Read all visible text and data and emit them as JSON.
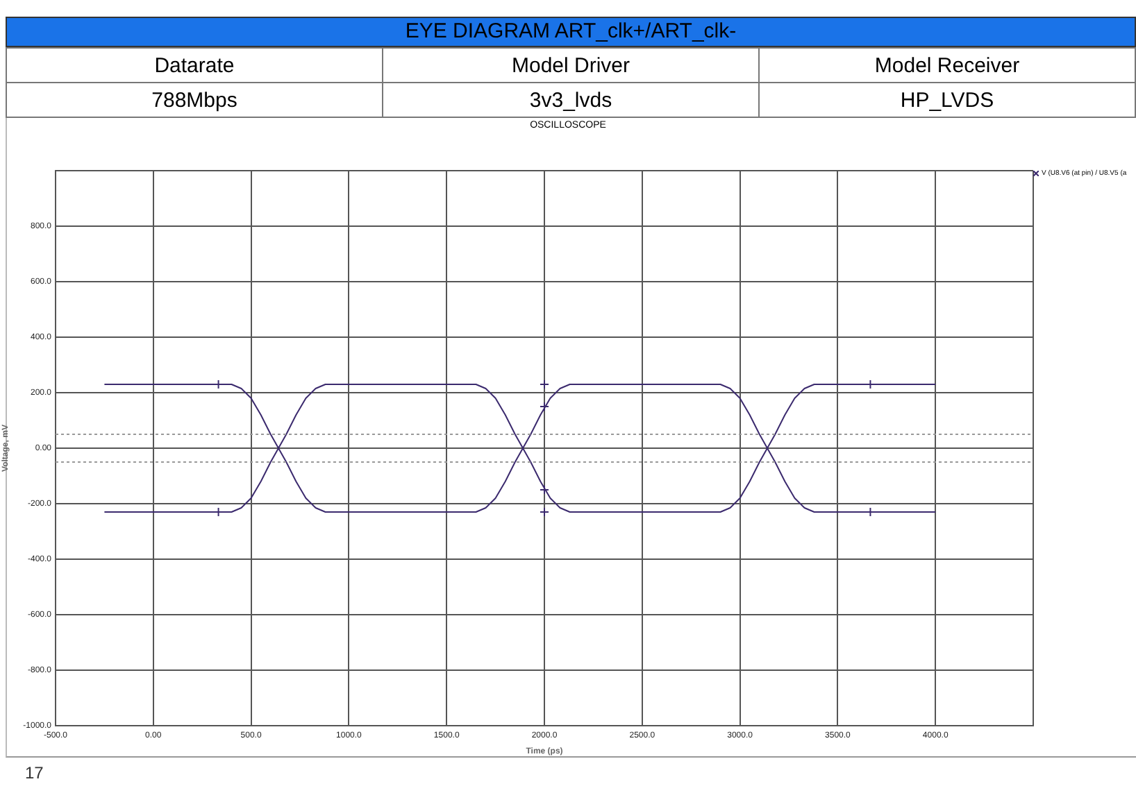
{
  "chart_data": {
    "type": "line",
    "title": "EYE DIAGRAM ART_clk+/ART_clk-",
    "subtitle": "OSCILLOSCOPE",
    "xlabel": "Time (ps)",
    "ylabel": "Voltage, mV",
    "annotations": [
      "Datarate",
      "Model Driver",
      "Model Receiver",
      "788Mbps",
      "3v3_lvds",
      "HP_LVDS",
      "17"
    ],
    "xlim": [
      -500,
      4500
    ],
    "xticks": [
      {
        "value": -500,
        "label": "-500.0"
      },
      {
        "value": 0,
        "label": "0.00"
      },
      {
        "value": 500,
        "label": "500.0"
      },
      {
        "value": 1000,
        "label": "1000.0"
      },
      {
        "value": 1500,
        "label": "1500.0"
      },
      {
        "value": 2000,
        "label": "2000.0"
      },
      {
        "value": 2500,
        "label": "2500.0"
      },
      {
        "value": 3000,
        "label": "3000.0"
      },
      {
        "value": 3500,
        "label": "3500.0"
      },
      {
        "value": 4000,
        "label": "4000.0"
      },
      {
        "value": 4500,
        "label": null
      }
    ],
    "ylim": [
      -1000,
      1000
    ],
    "yticks": [
      {
        "value": -1000,
        "label": "-1000.0"
      },
      {
        "value": -800,
        "label": "-800.0"
      },
      {
        "value": -600,
        "label": "-600.0"
      },
      {
        "value": -400,
        "label": "-400.0"
      },
      {
        "value": -200,
        "label": "-200.0"
      },
      {
        "value": 0,
        "label": "0.00"
      },
      {
        "value": 200,
        "label": "200.0"
      },
      {
        "value": 400,
        "label": "400.0"
      },
      {
        "value": 600,
        "label": "600.0"
      },
      {
        "value": 800,
        "label": "800.0"
      },
      {
        "value": 1000,
        "label": null
      }
    ],
    "grid": true,
    "legend": "top right",
    "ref_lines": [
      {
        "axis": "y",
        "value": 50,
        "label": null,
        "color": "#999999",
        "line_style": "dotted"
      },
      {
        "axis": "y",
        "value": -50,
        "label": null,
        "color": "#999999",
        "line_style": "dotted"
      }
    ],
    "series": [
      {
        "name": "V (U8.V6 (at pin) / U8.V5 (a",
        "type": "line",
        "color": "#3b2a6e",
        "marker": "none",
        "x": [
          -250,
          400,
          450,
          500,
          550,
          600,
          640,
          680,
          730,
          780,
          830,
          880,
          1650,
          1700,
          1750,
          1800,
          1850,
          1890,
          1930,
          1980,
          2030,
          2080,
          2130,
          2900,
          2950,
          3000,
          3050,
          3100,
          3140,
          3180,
          3230,
          3280,
          3330,
          3380,
          4000
        ],
        "values": [
          230,
          230,
          215,
          180,
          120,
          50,
          0,
          -50,
          -120,
          -180,
          -215,
          -230,
          -230,
          -215,
          -180,
          -120,
          -50,
          0,
          50,
          120,
          180,
          215,
          230,
          230,
          215,
          180,
          120,
          50,
          0,
          -50,
          -120,
          -180,
          -215,
          -230,
          -230
        ]
      },
      {
        "type": "line",
        "color": "#3b2a6e",
        "marker": "none",
        "x": [
          -250,
          400,
          450,
          500,
          550,
          600,
          640,
          680,
          730,
          780,
          830,
          880,
          1650,
          1700,
          1750,
          1800,
          1850,
          1890,
          1930,
          1980,
          2030,
          2080,
          2130,
          2900,
          2950,
          3000,
          3050,
          3100,
          3140,
          3180,
          3230,
          3280,
          3330,
          3380,
          4000
        ],
        "values": [
          -230,
          -230,
          -215,
          -180,
          -120,
          -50,
          0,
          50,
          120,
          180,
          215,
          230,
          230,
          215,
          180,
          120,
          50,
          0,
          -50,
          -120,
          -180,
          -215,
          -230,
          -230,
          -215,
          -180,
          -120,
          -50,
          0,
          50,
          120,
          180,
          215,
          230,
          230
        ]
      },
      {
        "type": "scatter",
        "color": "#3b2a6e",
        "marker": "cross",
        "x": [
          333,
          333,
          2000,
          2000,
          2000,
          2000,
          3667,
          3667
        ],
        "values": [
          230,
          -230,
          230,
          150,
          -150,
          -230,
          230,
          -230
        ]
      }
    ]
  }
}
